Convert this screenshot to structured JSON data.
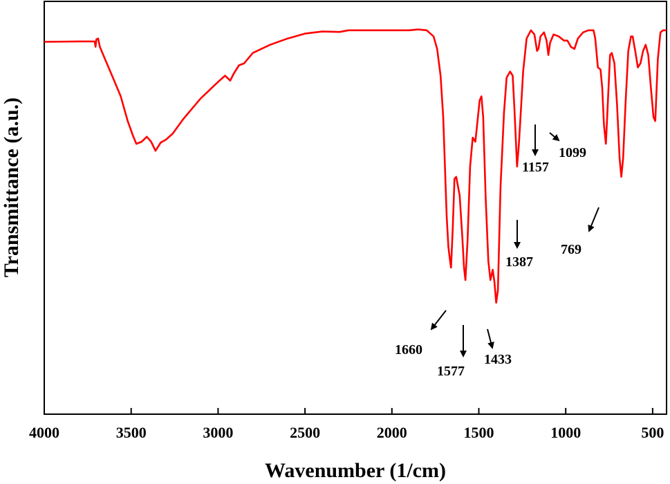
{
  "chart_data": {
    "type": "line",
    "title": "",
    "xlabel": "Wavenumber (1/cm)",
    "ylabel": "Transmittance (a.u.)",
    "xlim": [
      4000,
      420
    ],
    "ylim": [
      0,
      100
    ],
    "x_reversed": true,
    "y_ticks_shown": false,
    "grid": false,
    "legend": "none",
    "x_ticks": [
      4000,
      3500,
      3000,
      2500,
      2000,
      1500,
      1000,
      500
    ],
    "x_tick_labels": [
      "4000",
      "3500",
      "3000",
      "2500",
      "2000",
      "1500",
      "1000",
      "500"
    ],
    "line_color": "#ff0000",
    "series": [
      {
        "name": "",
        "points": [
          [
            4000,
            90.2
          ],
          [
            3800,
            90.3
          ],
          [
            3710,
            90.3
          ],
          [
            3705,
            89.0
          ],
          [
            3700,
            90.8
          ],
          [
            3690,
            91.0
          ],
          [
            3680,
            89.0
          ],
          [
            3640,
            85.0
          ],
          [
            3600,
            81.0
          ],
          [
            3560,
            77.0
          ],
          [
            3520,
            71.0
          ],
          [
            3490,
            67.5
          ],
          [
            3470,
            65.5
          ],
          [
            3440,
            66.0
          ],
          [
            3410,
            67.2
          ],
          [
            3385,
            66.0
          ],
          [
            3360,
            63.8
          ],
          [
            3330,
            65.8
          ],
          [
            3300,
            66.5
          ],
          [
            3260,
            68.0
          ],
          [
            3200,
            71.5
          ],
          [
            3150,
            74.0
          ],
          [
            3100,
            76.5
          ],
          [
            3050,
            78.5
          ],
          [
            3000,
            80.5
          ],
          [
            2960,
            82.0
          ],
          [
            2930,
            80.8
          ],
          [
            2910,
            82.5
          ],
          [
            2880,
            84.5
          ],
          [
            2850,
            85.0
          ],
          [
            2800,
            87.5
          ],
          [
            2700,
            89.5
          ],
          [
            2600,
            91.0
          ],
          [
            2500,
            92.2
          ],
          [
            2400,
            92.7
          ],
          [
            2300,
            92.6
          ],
          [
            2250,
            93.0
          ],
          [
            2100,
            93.0
          ],
          [
            2000,
            93.0
          ],
          [
            1900,
            93.0
          ],
          [
            1850,
            93.2
          ],
          [
            1800,
            93.0
          ],
          [
            1760,
            91.5
          ],
          [
            1740,
            88.5
          ],
          [
            1720,
            82.0
          ],
          [
            1705,
            72.0
          ],
          [
            1695,
            60.0
          ],
          [
            1685,
            48.0
          ],
          [
            1675,
            40.5
          ],
          [
            1665,
            37.0
          ],
          [
            1660,
            35.5
          ],
          [
            1650,
            45.0
          ],
          [
            1640,
            57.0
          ],
          [
            1630,
            57.5
          ],
          [
            1610,
            53.0
          ],
          [
            1595,
            43.0
          ],
          [
            1585,
            35.5
          ],
          [
            1577,
            32.5
          ],
          [
            1565,
            42.0
          ],
          [
            1550,
            60.0
          ],
          [
            1535,
            67.0
          ],
          [
            1520,
            66.0
          ],
          [
            1505,
            72.0
          ],
          [
            1495,
            76.0
          ],
          [
            1485,
            77.0
          ],
          [
            1475,
            72.0
          ],
          [
            1460,
            52.0
          ],
          [
            1445,
            37.0
          ],
          [
            1433,
            32.5
          ],
          [
            1420,
            35.0
          ],
          [
            1410,
            32.0
          ],
          [
            1400,
            27.0
          ],
          [
            1390,
            30.0
          ],
          [
            1375,
            55.0
          ],
          [
            1355,
            73.0
          ],
          [
            1340,
            81.5
          ],
          [
            1320,
            83.0
          ],
          [
            1305,
            82.0
          ],
          [
            1295,
            74.0
          ],
          [
            1280,
            60.0
          ],
          [
            1270,
            65.0
          ],
          [
            1260,
            72.0
          ],
          [
            1245,
            83.0
          ],
          [
            1225,
            91.0
          ],
          [
            1200,
            93.0
          ],
          [
            1180,
            92.0
          ],
          [
            1165,
            88.0
          ],
          [
            1157,
            88.5
          ],
          [
            1145,
            91.5
          ],
          [
            1125,
            92.5
          ],
          [
            1110,
            90.5
          ],
          [
            1100,
            87.0
          ],
          [
            1090,
            90.0
          ],
          [
            1070,
            92.0
          ],
          [
            1040,
            91.5
          ],
          [
            1010,
            90.5
          ],
          [
            990,
            90.5
          ],
          [
            970,
            89.0
          ],
          [
            950,
            88.5
          ],
          [
            930,
            91.0
          ],
          [
            900,
            92.5
          ],
          [
            870,
            93.0
          ],
          [
            840,
            93.0
          ],
          [
            830,
            91.0
          ],
          [
            815,
            84.0
          ],
          [
            800,
            83.5
          ],
          [
            790,
            79.0
          ],
          [
            780,
            70.0
          ],
          [
            769,
            65.5
          ],
          [
            755,
            78.0
          ],
          [
            745,
            87.0
          ],
          [
            735,
            87.5
          ],
          [
            720,
            85.0
          ],
          [
            705,
            75.0
          ],
          [
            690,
            62.0
          ],
          [
            680,
            57.5
          ],
          [
            670,
            62.0
          ],
          [
            655,
            76.0
          ],
          [
            640,
            88.0
          ],
          [
            625,
            91.5
          ],
          [
            615,
            91.5
          ],
          [
            600,
            88.0
          ],
          [
            585,
            84.0
          ],
          [
            570,
            85.0
          ],
          [
            555,
            88.0
          ],
          [
            540,
            89.5
          ],
          [
            525,
            87.0
          ],
          [
            510,
            79.0
          ],
          [
            495,
            72.0
          ],
          [
            485,
            71.0
          ],
          [
            470,
            86.0
          ],
          [
            455,
            92.5
          ],
          [
            440,
            93.0
          ],
          [
            420,
            93.0
          ]
        ]
      }
    ],
    "annotations": [
      {
        "text": "1660"
      },
      {
        "text": "1577"
      },
      {
        "text": "1433"
      },
      {
        "text": "1387"
      },
      {
        "text": "1157"
      },
      {
        "text": "1099"
      },
      {
        "text": "769"
      }
    ]
  }
}
